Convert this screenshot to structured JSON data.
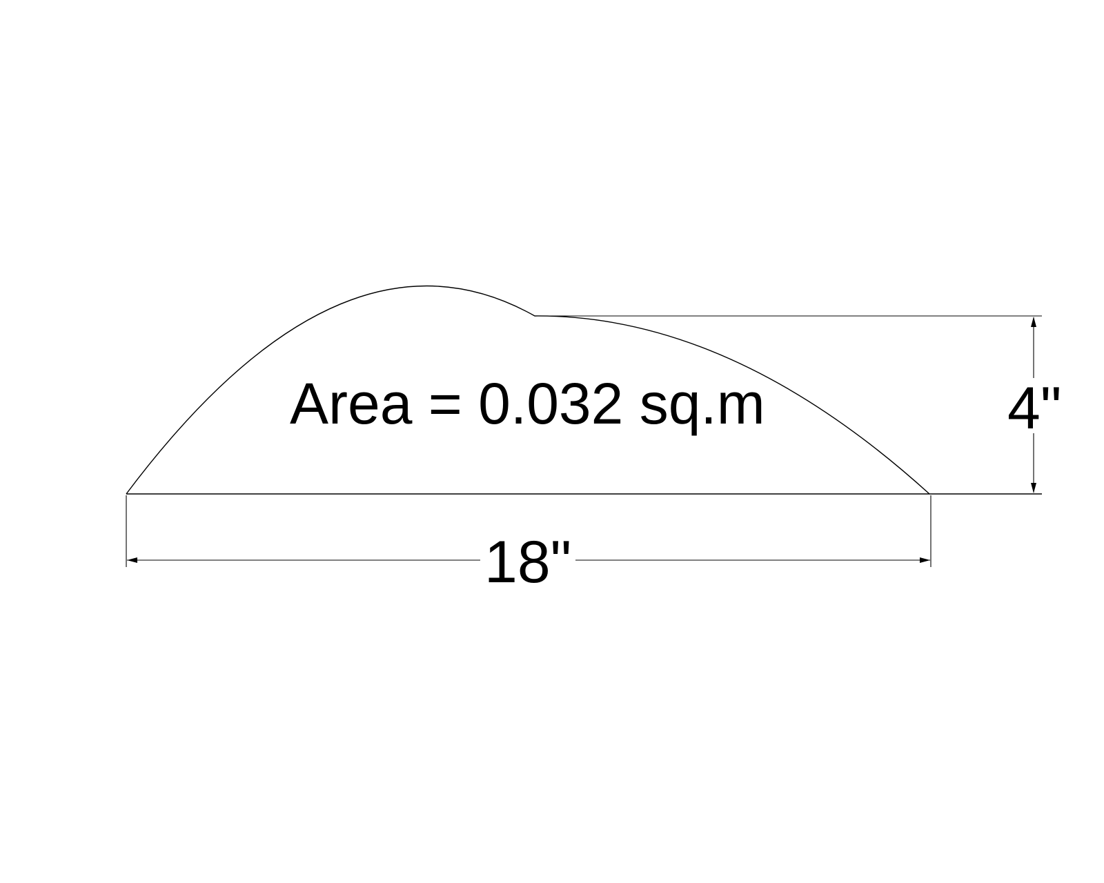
{
  "drawing": {
    "shape": "circular segment",
    "area_label": "Area = 0.032 sq.m",
    "width_dimension": "18\"",
    "height_dimension": "4\"",
    "line_color": "#000000",
    "background_color": "#ffffff"
  }
}
